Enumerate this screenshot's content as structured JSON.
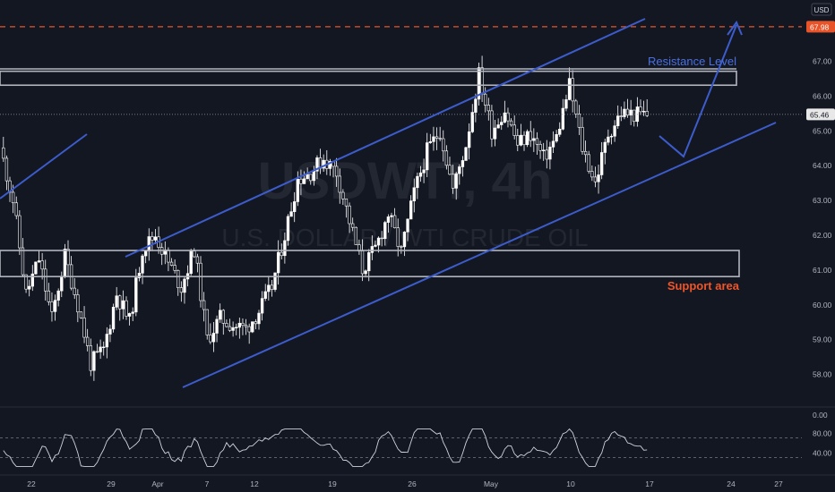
{
  "header": {
    "currency_label": "USD"
  },
  "watermark": {
    "symbol": "USDWTI, 4h",
    "description": "U.S. DOLLAR / WTI CRUDE OIL"
  },
  "colors": {
    "background": "#131722",
    "candle": "#ffffff",
    "trendline": "#3d5ccc",
    "box_border": "#b2b5be",
    "support_text": "#f0552a",
    "resistance_text": "#4a6fe0",
    "target_line": "#e8542a",
    "price_badge": "#e8e8e8",
    "target_badge": "#e8542a",
    "axis_text": "#b2b5be",
    "grid": "#2a2e39"
  },
  "chart_data": [
    {
      "type": "candlestick",
      "symbol": "USDWTI",
      "timeframe": "4h",
      "y_axis": {
        "ticks": [
          58.0,
          59.0,
          60.0,
          61.0,
          62.0,
          63.0,
          64.0,
          65.0,
          66.0,
          67.0
        ],
        "ylim": [
          57.4,
          68.6
        ]
      },
      "x_axis": {
        "tick_labels": [
          "22",
          "29",
          "Apr",
          "7",
          "12",
          "19",
          "26",
          "May",
          "10",
          "17",
          "24",
          "27"
        ]
      },
      "current_price": 65.46,
      "target_price": 67.98,
      "close_path": {
        "t": [
          0,
          4,
          8,
          12,
          16,
          20,
          24,
          28,
          32,
          36,
          40,
          44,
          48,
          52,
          56,
          60,
          64,
          68,
          72,
          76,
          80,
          84,
          88,
          92,
          96,
          100,
          104,
          108,
          112,
          116,
          120,
          124,
          128,
          132,
          136,
          140,
          144,
          148,
          152,
          156,
          160,
          164,
          168,
          172,
          176,
          180,
          184,
          188,
          192,
          196,
          200
        ],
        "close": [
          64.5,
          63.0,
          60.3,
          61.3,
          59.6,
          61.4,
          60.0,
          58.3,
          58.7,
          60.3,
          59.5,
          61.6,
          62.0,
          61.2,
          60.5,
          61.6,
          59.0,
          59.6,
          59.4,
          59.3,
          59.8,
          60.5,
          62.0,
          63.6,
          63.8,
          64.2,
          63.8,
          62.4,
          61.0,
          61.6,
          62.6,
          61.5,
          63.2,
          64.4,
          65.0,
          63.3,
          64.6,
          66.6,
          65.0,
          65.6,
          64.6,
          64.9,
          64.2,
          64.8,
          66.3,
          64.5,
          63.5,
          64.9,
          65.5,
          65.46,
          65.46
        ]
      },
      "oscillator": {
        "ticks": [
          0.0,
          40.0,
          80.0
        ],
        "levels": [
          30,
          70
        ]
      },
      "annotations": {
        "resistance_label": "Resistance Level",
        "support_label": "Support area",
        "resistance_zone": [
          66.3,
          66.7
        ],
        "support_zone": [
          60.8,
          61.55
        ],
        "target_label": "67.98",
        "price_label": "65.46"
      }
    }
  ]
}
